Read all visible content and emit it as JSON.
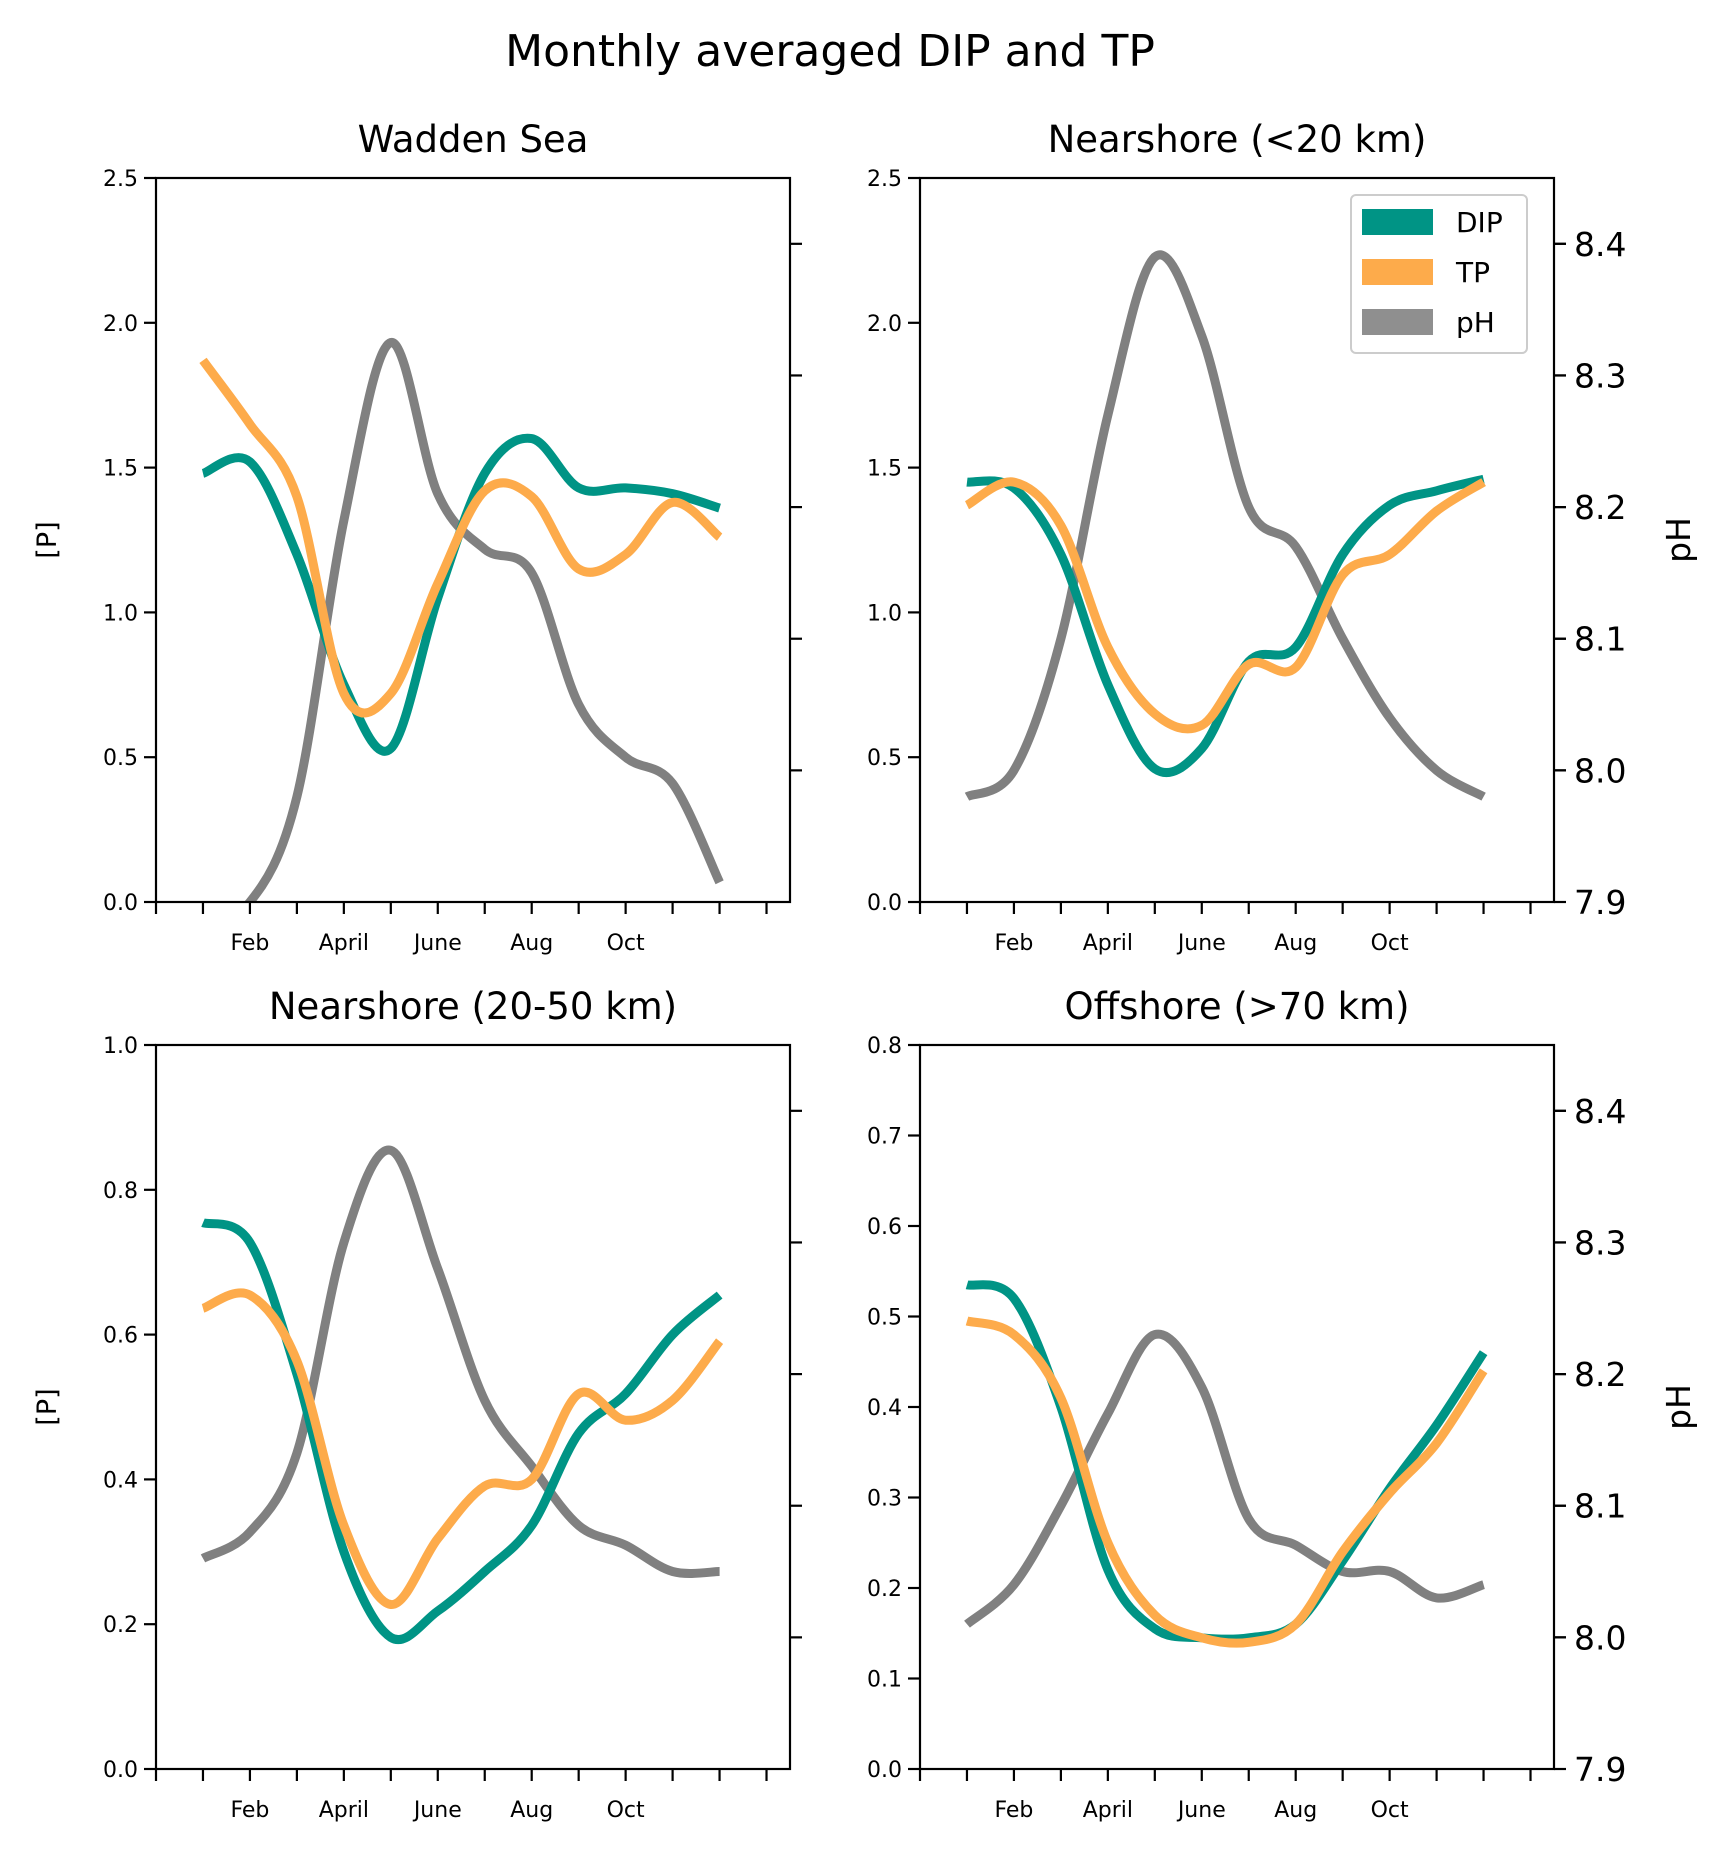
{
  "figure": {
    "title": "Monthly averaged DIP and TP",
    "colors": {
      "DIP": "#009485",
      "TP": "#fdab4b",
      "pH": "#808080",
      "legend_pH": "#8f8f8f"
    },
    "legend": {
      "placement": "top-right of Nearshore (<20 km)",
      "entries": [
        "DIP",
        "TP",
        "pH"
      ]
    }
  },
  "chart_data": [
    {
      "type": "line",
      "title": "Wadden Sea",
      "ylabel": "[P]",
      "y2label": "",
      "ylim": [
        0,
        2.5
      ],
      "yticks": [
        "0.0",
        "0.5",
        "1.0",
        "1.5",
        "2.0",
        "2.5"
      ],
      "y2lim": [
        7.9,
        8.45
      ],
      "y2ticks": [],
      "xticks": [
        "Feb",
        "April",
        "June",
        "Aug",
        "Oct"
      ],
      "xlim": [
        -1,
        12.5
      ],
      "series": [
        {
          "name": "DIP",
          "x": [
            0,
            1,
            2,
            3,
            4,
            5,
            6,
            7,
            8,
            9,
            10,
            11
          ],
          "values": [
            1.48,
            1.52,
            1.2,
            0.75,
            0.53,
            1.05,
            1.48,
            1.6,
            1.43,
            1.43,
            1.41,
            1.36
          ]
        },
        {
          "name": "TP",
          "x": [
            0,
            1,
            2,
            3,
            4,
            5,
            6,
            7,
            8,
            9,
            10,
            11
          ],
          "values": [
            1.87,
            1.65,
            1.4,
            0.72,
            0.72,
            1.1,
            1.42,
            1.4,
            1.15,
            1.2,
            1.38,
            1.26
          ]
        },
        {
          "name": "pH",
          "x": [
            0,
            1,
            2,
            3,
            4,
            5,
            6,
            7,
            8,
            9,
            10,
            11
          ],
          "values": [
            7.89,
            7.9,
            7.98,
            8.19,
            8.325,
            8.21,
            8.168,
            8.15,
            8.05,
            8.01,
            7.99,
            7.915
          ]
        }
      ]
    },
    {
      "type": "line",
      "title": "Nearshore (<20 km)",
      "ylabel": "",
      "y2label": "pH",
      "ylim": [
        0,
        2.5
      ],
      "yticks": [
        "0.0",
        "0.5",
        "1.0",
        "1.5",
        "2.0",
        "2.5"
      ],
      "y2lim": [
        7.9,
        8.45
      ],
      "y2ticks": [
        "7.9",
        "8.0",
        "8.1",
        "8.2",
        "8.3",
        "8.4"
      ],
      "xticks": [
        "Feb",
        "April",
        "June",
        "Aug",
        "Oct"
      ],
      "xlim": [
        -1,
        12.5
      ],
      "series": [
        {
          "name": "DIP",
          "x": [
            0,
            1,
            2,
            3,
            4,
            5,
            6,
            7,
            8,
            9,
            10,
            11
          ],
          "values": [
            1.45,
            1.43,
            1.2,
            0.75,
            0.46,
            0.53,
            0.83,
            0.88,
            1.2,
            1.37,
            1.42,
            1.46
          ]
        },
        {
          "name": "TP",
          "x": [
            0,
            1,
            2,
            3,
            4,
            5,
            6,
            7,
            8,
            9,
            10,
            11
          ],
          "values": [
            1.37,
            1.45,
            1.3,
            0.88,
            0.65,
            0.61,
            0.82,
            0.81,
            1.13,
            1.2,
            1.35,
            1.45
          ]
        },
        {
          "name": "pH",
          "x": [
            0,
            1,
            2,
            3,
            4,
            5,
            6,
            7,
            8,
            9,
            10,
            11
          ],
          "values": [
            7.98,
            8.0,
            8.1,
            8.27,
            8.39,
            8.33,
            8.2,
            8.17,
            8.1,
            8.04,
            8.0,
            7.98
          ]
        }
      ]
    },
    {
      "type": "line",
      "title": "Nearshore (20-50 km)",
      "ylabel": "[P]",
      "y2label": "",
      "ylim": [
        0,
        1.1
      ],
      "yticks": [
        "0.0",
        "0.2",
        "0.4",
        "0.6",
        "0.8",
        "1.0"
      ],
      "y2lim": [
        7.9,
        8.45
      ],
      "y2ticks": [],
      "xticks": [
        "Feb",
        "April",
        "June",
        "Aug",
        "Oct"
      ],
      "xlim": [
        -1,
        12.5
      ],
      "series": [
        {
          "name": "DIP",
          "x": [
            0,
            1,
            2,
            3,
            4,
            5,
            6,
            7,
            8,
            9,
            10,
            11
          ],
          "values": [
            0.83,
            0.8,
            0.6,
            0.33,
            0.2,
            0.24,
            0.3,
            0.37,
            0.51,
            0.57,
            0.66,
            0.72
          ]
        },
        {
          "name": "TP",
          "x": [
            0,
            1,
            2,
            3,
            4,
            5,
            6,
            7,
            8,
            9,
            10,
            11
          ],
          "values": [
            0.7,
            0.72,
            0.62,
            0.37,
            0.25,
            0.35,
            0.43,
            0.44,
            0.57,
            0.53,
            0.56,
            0.65
          ]
        },
        {
          "name": "pH",
          "x": [
            0,
            1,
            2,
            3,
            4,
            5,
            6,
            7,
            8,
            9,
            10,
            11
          ],
          "values": [
            8.06,
            8.08,
            8.14,
            8.3,
            8.37,
            8.28,
            8.18,
            8.13,
            8.085,
            8.07,
            8.05,
            8.05
          ]
        }
      ]
    },
    {
      "type": "line",
      "title": "Offshore (>70 km)",
      "ylabel": "",
      "y2label": "pH",
      "ylim": [
        0,
        0.8
      ],
      "yticks": [
        "0.0",
        "0.1",
        "0.2",
        "0.3",
        "0.4",
        "0.5",
        "0.6",
        "0.7",
        "0.8"
      ],
      "y2lim": [
        7.9,
        8.45
      ],
      "y2ticks": [
        "7.9",
        "8.0",
        "8.1",
        "8.2",
        "8.3",
        "8.4"
      ],
      "xticks": [
        "Feb",
        "April",
        "June",
        "Aug",
        "Oct"
      ],
      "xlim": [
        -1,
        12.5
      ],
      "series": [
        {
          "name": "DIP",
          "x": [
            0,
            1,
            2,
            3,
            4,
            5,
            6,
            7,
            8,
            9,
            10,
            11
          ],
          "values": [
            0.535,
            0.52,
            0.4,
            0.22,
            0.155,
            0.145,
            0.145,
            0.16,
            0.23,
            0.31,
            0.38,
            0.46
          ]
        },
        {
          "name": "TP",
          "x": [
            0,
            1,
            2,
            3,
            4,
            5,
            6,
            7,
            8,
            9,
            10,
            11
          ],
          "values": [
            0.495,
            0.48,
            0.41,
            0.25,
            0.17,
            0.145,
            0.14,
            0.16,
            0.24,
            0.305,
            0.36,
            0.44
          ]
        },
        {
          "name": "pH",
          "x": [
            0,
            1,
            2,
            3,
            4,
            5,
            6,
            7,
            8,
            9,
            10,
            11
          ],
          "values": [
            8.01,
            8.04,
            8.1,
            8.17,
            8.23,
            8.19,
            8.09,
            8.07,
            8.05,
            8.05,
            8.03,
            8.04
          ]
        }
      ]
    }
  ]
}
